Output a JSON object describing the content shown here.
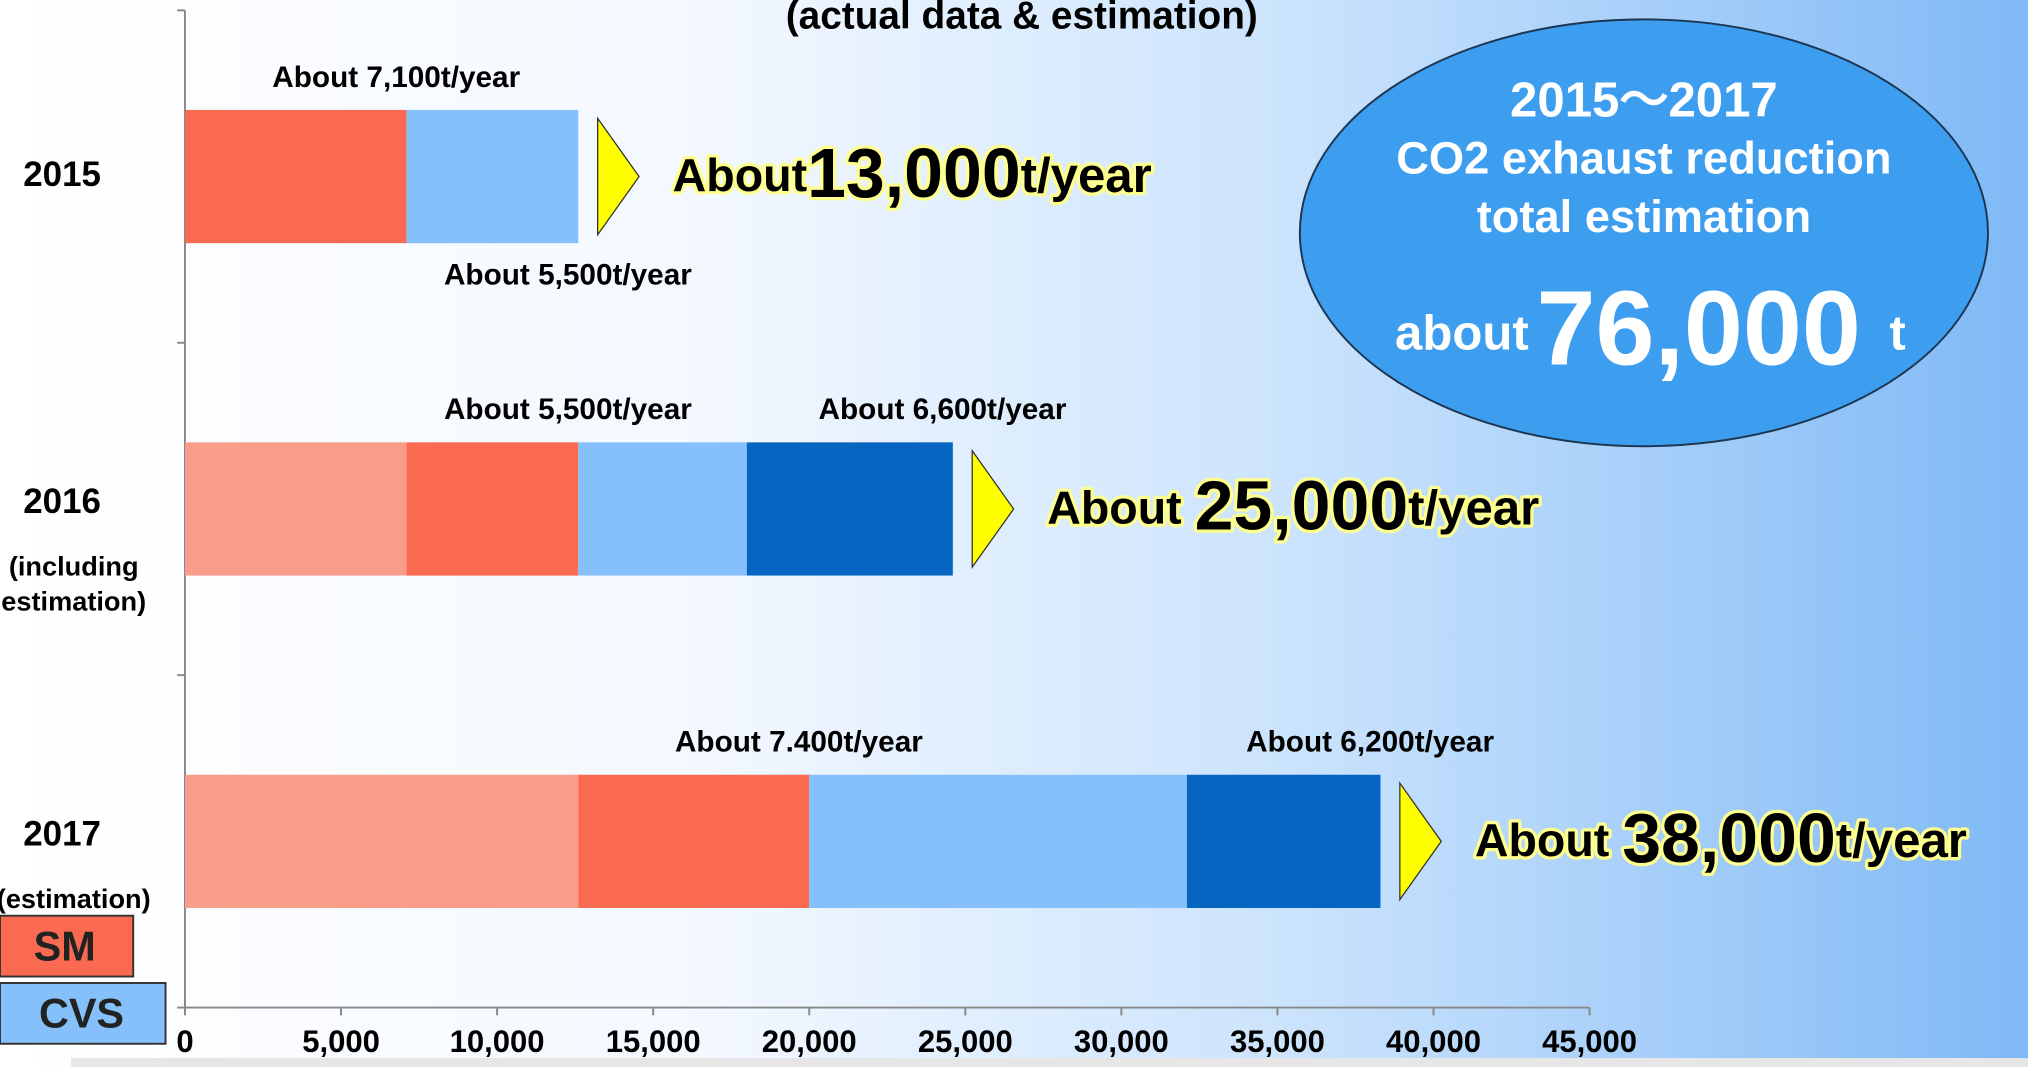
{
  "chart_data": {
    "type": "bar",
    "orientation": "horizontal",
    "stacked": true,
    "title": "(actual data & estimation)",
    "categories": [
      "2015",
      "2016",
      "2017"
    ],
    "category_notes": [
      null,
      "(including estimation)",
      "(estimation)"
    ],
    "bars": [
      {
        "segments": [
          {
            "value": 7100,
            "color": "#f96a50",
            "label": "About 7,100t/year",
            "label_position": "above"
          },
          {
            "value": 5500,
            "color": "#85c0fa",
            "label": "About 5,500t/year",
            "label_position": "below"
          }
        ],
        "total": 13000,
        "total_label": {
          "prefix": "About",
          "number": "13,000",
          "suffix": "t/year"
        }
      },
      {
        "segments": [
          {
            "value": 7100,
            "color": "#f99c8a"
          },
          {
            "value": 5500,
            "color": "#f96a50",
            "label": "About 5,500t/year",
            "label_position": "above"
          },
          {
            "value": 5400,
            "color": "#85c0fa"
          },
          {
            "value": 6600,
            "color": "#0565c1",
            "label": "About 6,600t/year",
            "label_position": "above"
          }
        ],
        "total": 25000,
        "total_label": {
          "prefix": "About ",
          "number": "25,000",
          "suffix": "t/year"
        }
      },
      {
        "segments": [
          {
            "value": 7100,
            "color": "#f99c8a"
          },
          {
            "value": 5500,
            "color": "#f99c8a"
          },
          {
            "value": 7400,
            "color": "#f96a50",
            "label": "About 7.400t/year",
            "label_position": "above"
          },
          {
            "value": 12100,
            "color": "#85c0fa"
          },
          {
            "value": 6200,
            "color": "#0565c1",
            "label": "About 6,200t/year",
            "label_position": "above"
          }
        ],
        "total": 38000,
        "total_label": {
          "prefix": "About ",
          "number": "38,000",
          "suffix": "t/year"
        }
      }
    ],
    "xlim": [
      0,
      45000
    ],
    "xticks": [
      0,
      {
        "value": 5000,
        "label": "5,000"
      },
      {
        "value": 10000,
        "label": "10,000"
      },
      {
        "value": 15000,
        "label": "15,000"
      },
      {
        "value": 20000,
        "label": "20,000"
      },
      {
        "value": 25000,
        "label": "25,000"
      },
      {
        "value": 30000,
        "label": "30,000"
      },
      {
        "value": 35000,
        "label": "35,000"
      },
      {
        "value": 40000,
        "label": "40,000"
      },
      {
        "value": 45000,
        "label": "45,000"
      }
    ],
    "legend": [
      {
        "name": "SM",
        "color": "#f96a50"
      },
      {
        "name": "CVS",
        "color": "#85c0fa"
      }
    ],
    "callout": {
      "lines": [
        "2015～2017",
        "CO2 exhaust reduction",
        "total estimation"
      ],
      "prefix": "about",
      "number": "76,000",
      "unit": "t"
    }
  }
}
